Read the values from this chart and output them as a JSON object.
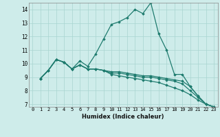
{
  "xlabel": "Humidex (Indice chaleur)",
  "xlim": [
    -0.5,
    23.5
  ],
  "ylim": [
    6.8,
    14.5
  ],
  "xticks": [
    0,
    1,
    2,
    3,
    4,
    5,
    6,
    7,
    8,
    9,
    10,
    11,
    12,
    13,
    14,
    15,
    16,
    17,
    18,
    19,
    20,
    21,
    22,
    23
  ],
  "yticks": [
    7,
    8,
    9,
    10,
    11,
    12,
    13,
    14
  ],
  "background_color": "#ceecea",
  "grid_color": "#a8d4d0",
  "line_color": "#1e7b6e",
  "lines": [
    {
      "x": [
        1,
        2,
        3,
        4,
        5,
        6,
        7,
        8,
        9,
        10,
        11,
        12,
        13,
        14,
        15,
        16,
        17,
        18,
        19,
        20,
        21,
        22,
        23
      ],
      "y": [
        8.9,
        9.5,
        10.3,
        10.1,
        9.6,
        10.2,
        9.8,
        10.7,
        11.8,
        12.9,
        13.1,
        13.4,
        14.0,
        13.7,
        14.5,
        12.2,
        11.0,
        9.2,
        9.2,
        8.3,
        7.6,
        7.0,
        6.8
      ]
    },
    {
      "x": [
        1,
        2,
        3,
        4,
        5,
        6,
        7,
        8,
        9,
        10,
        11,
        12,
        13,
        14,
        15,
        16,
        17,
        18,
        19,
        20,
        21,
        22,
        23
      ],
      "y": [
        8.9,
        9.5,
        10.3,
        10.1,
        9.6,
        9.9,
        9.6,
        9.6,
        9.5,
        9.4,
        9.4,
        9.3,
        9.2,
        9.1,
        9.1,
        9.0,
        8.9,
        8.8,
        8.7,
        8.3,
        7.6,
        7.0,
        6.8
      ]
    },
    {
      "x": [
        1,
        2,
        3,
        4,
        5,
        6,
        7,
        8,
        9,
        10,
        11,
        12,
        13,
        14,
        15,
        16,
        17,
        18,
        19,
        20,
        21,
        22,
        23
      ],
      "y": [
        8.9,
        9.5,
        10.3,
        10.1,
        9.6,
        9.9,
        9.6,
        9.6,
        9.5,
        9.3,
        9.3,
        9.2,
        9.1,
        9.0,
        9.0,
        8.9,
        8.8,
        8.7,
        8.5,
        8.0,
        7.5,
        7.0,
        6.8
      ]
    },
    {
      "x": [
        1,
        2,
        3,
        4,
        5,
        6,
        7,
        8,
        9,
        10,
        11,
        12,
        13,
        14,
        15,
        16,
        17,
        18,
        19,
        20,
        21,
        22,
        23
      ],
      "y": [
        8.9,
        9.5,
        10.3,
        10.1,
        9.6,
        9.9,
        9.6,
        9.6,
        9.5,
        9.2,
        9.1,
        9.0,
        8.9,
        8.8,
        8.7,
        8.6,
        8.4,
        8.2,
        8.0,
        7.7,
        7.3,
        7.0,
        6.8
      ]
    }
  ]
}
